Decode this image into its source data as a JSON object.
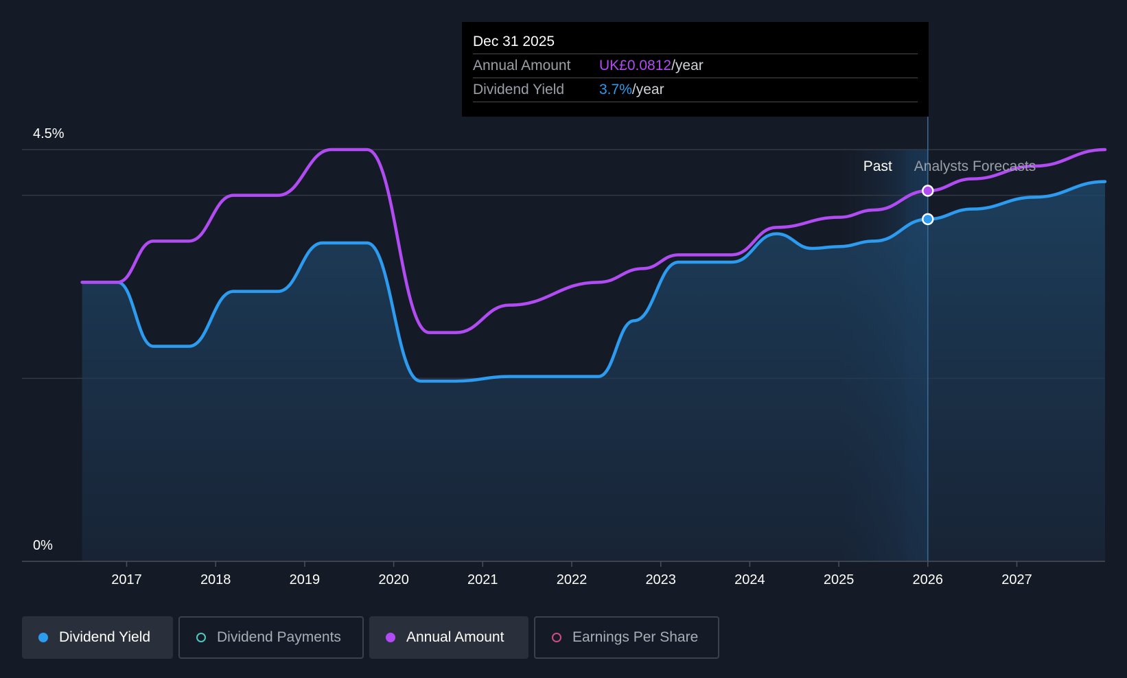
{
  "chart_data": {
    "type": "line",
    "title": "",
    "xlabel": "",
    "ylabel": "",
    "y_axis_labels": [
      "4.5%",
      "0%"
    ],
    "ylim": [
      0,
      4.5
    ],
    "xlim": [
      2016.0,
      2028.0
    ],
    "x_ticks": [
      2017,
      2018,
      2019,
      2020,
      2021,
      2022,
      2023,
      2024,
      2025,
      2026,
      2027
    ],
    "x_tick_labels": [
      "2017",
      "2018",
      "2019",
      "2020",
      "2021",
      "2022",
      "2023",
      "2024",
      "2025",
      "2026",
      "2027"
    ],
    "regions": {
      "past_label": "Past",
      "forecast_label": "Analysts Forecasts",
      "divider_x": 2026.0
    },
    "series": [
      {
        "name": "Dividend Yield",
        "color": "#2d9bf0",
        "filled": true,
        "points": [
          [
            2016.5,
            3.05
          ],
          [
            2016.9,
            3.05
          ],
          [
            2017.3,
            2.35
          ],
          [
            2017.7,
            2.35
          ],
          [
            2018.2,
            2.95
          ],
          [
            2018.7,
            2.95
          ],
          [
            2019.2,
            3.48
          ],
          [
            2019.7,
            3.48
          ],
          [
            2020.3,
            1.97
          ],
          [
            2020.7,
            1.97
          ],
          [
            2021.3,
            2.02
          ],
          [
            2022.3,
            2.02
          ],
          [
            2022.7,
            2.63
          ],
          [
            2023.2,
            3.27
          ],
          [
            2023.8,
            3.27
          ],
          [
            2024.3,
            3.58
          ],
          [
            2024.7,
            3.42
          ],
          [
            2025.0,
            3.44
          ],
          [
            2025.4,
            3.5
          ],
          [
            2026.0,
            3.74
          ],
          [
            2026.5,
            3.85
          ],
          [
            2027.2,
            3.98
          ],
          [
            2028.0,
            4.15
          ]
        ]
      },
      {
        "name": "Annual Amount",
        "color": "#b14cf2",
        "filled": false,
        "points": [
          [
            2016.5,
            3.05
          ],
          [
            2016.9,
            3.05
          ],
          [
            2017.3,
            3.5
          ],
          [
            2017.7,
            3.5
          ],
          [
            2018.2,
            4.0
          ],
          [
            2018.7,
            4.0
          ],
          [
            2019.3,
            4.5
          ],
          [
            2019.7,
            4.5
          ],
          [
            2020.4,
            2.5
          ],
          [
            2020.7,
            2.5
          ],
          [
            2021.3,
            2.8
          ],
          [
            2022.3,
            3.05
          ],
          [
            2022.8,
            3.2
          ],
          [
            2023.2,
            3.35
          ],
          [
            2023.8,
            3.35
          ],
          [
            2024.3,
            3.65
          ],
          [
            2025.0,
            3.76
          ],
          [
            2025.4,
            3.84
          ],
          [
            2026.0,
            4.05
          ],
          [
            2026.5,
            4.18
          ],
          [
            2027.2,
            4.32
          ],
          [
            2028.0,
            4.5
          ]
        ]
      }
    ],
    "highlight_points": [
      {
        "series": "Annual Amount",
        "x": 2026.0,
        "y": 4.05
      },
      {
        "series": "Dividend Yield",
        "x": 2026.0,
        "y": 3.74
      }
    ],
    "gridlines_y": [
      4.5,
      4.0,
      2.0,
      0
    ]
  },
  "tooltip": {
    "date": "Dec 31 2025",
    "rows": [
      {
        "label": "Annual Amount",
        "value": "UK£0.0812",
        "unit": "/year"
      },
      {
        "label": "Dividend Yield",
        "value": "3.7%",
        "unit": "/year"
      }
    ]
  },
  "legend": [
    {
      "label": "Dividend Yield",
      "color": "#2d9bf0",
      "active": true
    },
    {
      "label": "Dividend Payments",
      "color": "#4fc9c0",
      "active": false
    },
    {
      "label": "Annual Amount",
      "color": "#b14cf2",
      "active": true
    },
    {
      "label": "Earnings Per Share",
      "color": "#d14a86",
      "active": false
    }
  ],
  "colors": {
    "background": "#151b26",
    "dividend_fill": "#1e3a57"
  }
}
